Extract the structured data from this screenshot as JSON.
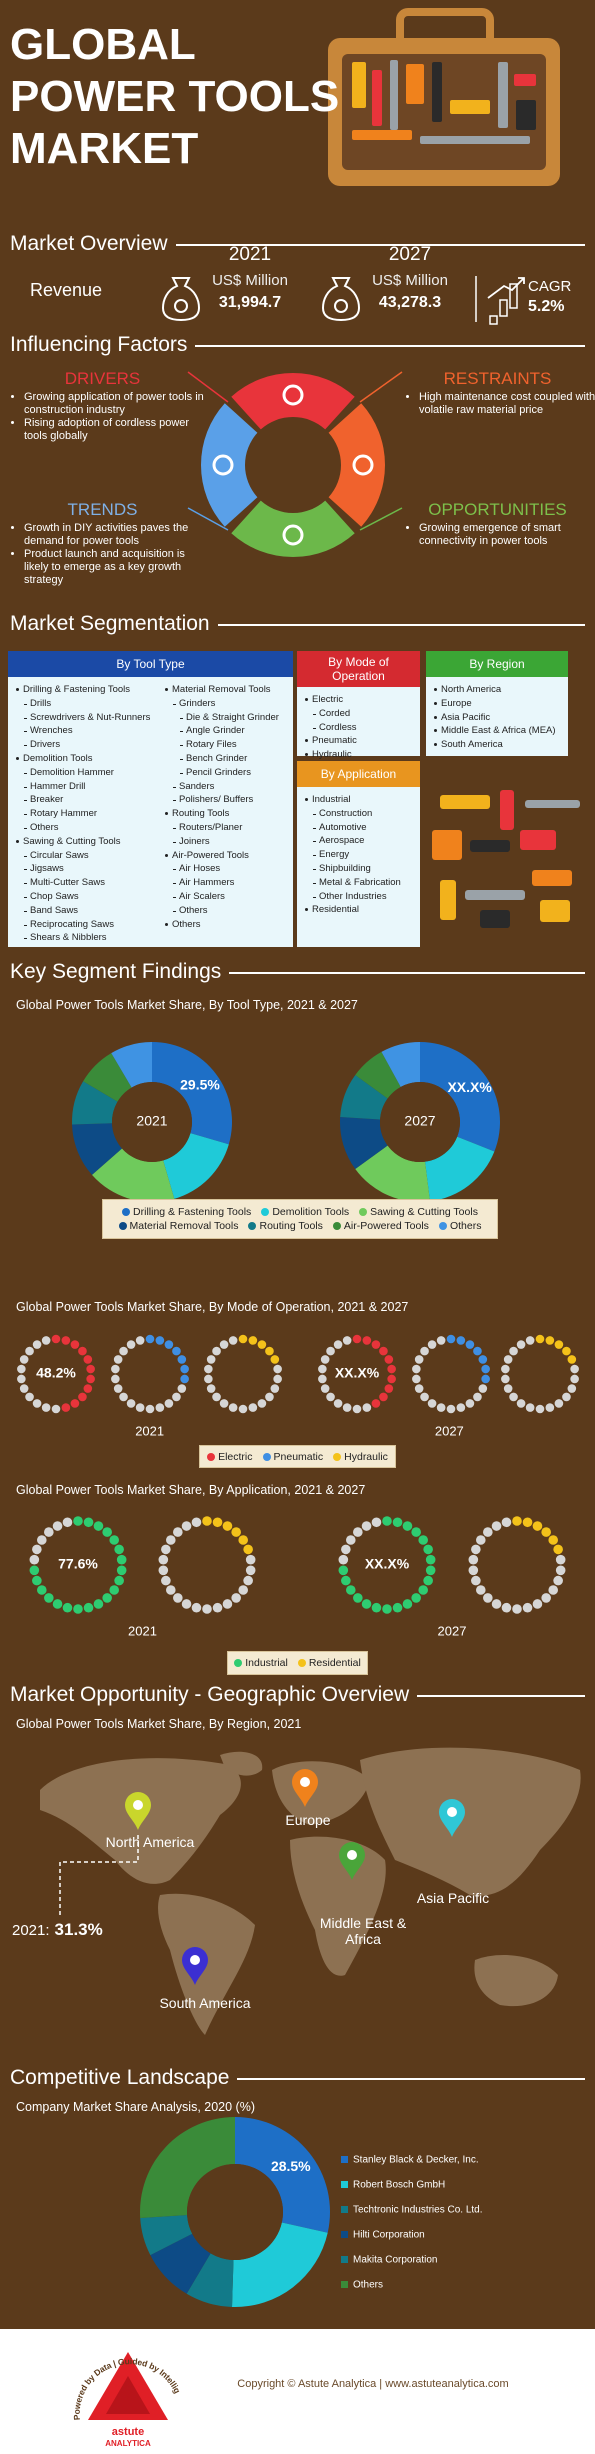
{
  "header": {
    "title_lines": [
      "GLOBAL",
      "POWER TOOLS",
      "MARKET"
    ]
  },
  "overview": {
    "heading": "Market Overview",
    "label": "Revenue",
    "items": [
      {
        "year": "2021",
        "unit": "US$ Million",
        "value": "31,994.7"
      },
      {
        "year": "2027",
        "unit": "US$ Million",
        "value": "43,278.3"
      }
    ],
    "cagr": {
      "label": "CAGR",
      "value": "5.2%"
    }
  },
  "factors": {
    "heading": "Influencing Factors",
    "quadrants": [
      {
        "title": "DRIVERS",
        "points": [
          "Growing application of power tools in construction industry",
          "Rising adoption of cordless power tools globally"
        ]
      },
      {
        "title": "RESTRAINTS",
        "points": [
          "High maintenance cost coupled with volatile raw material price"
        ]
      },
      {
        "title": "TRENDS",
        "points": [
          "Growth in DIY activities paves the demand for power tools",
          "Product launch and acquisition is likely to emerge as a key growth strategy"
        ]
      },
      {
        "title": "OPPORTUNITIES",
        "points": [
          "Growing emergence of smart connectivity in power tools"
        ]
      }
    ]
  },
  "segmentation": {
    "heading": "Market Segmentation",
    "tool_type": {
      "title": "By Tool Type",
      "groups": [
        {
          "name": "Drilling & Fastening Tools",
          "items": [
            "Drills",
            "Screwdrivers & Nut-Runners",
            "Wrenches",
            "Drivers"
          ]
        },
        {
          "name": "Demolition Tools",
          "items": [
            "Demolition Hammer",
            "Hammer Drill",
            "Breaker",
            "Rotary Hammer",
            "Others"
          ]
        },
        {
          "name": "Sawing & Cutting Tools",
          "items": [
            "Circular Saws",
            "Jigsaws",
            "Multi-Cutter Saws",
            "Chop Saws",
            "Band Saws",
            "Reciprocating Saws",
            "Shears & Nibblers"
          ]
        },
        {
          "name": "Material Removal Tools",
          "items": [
            {
              "name": "Grinders",
              "items": [
                "Die & Straight Grinder",
                "Angle Grinder",
                "Rotary Files",
                "Bench Grinder",
                "Pencil Grinders"
              ]
            },
            "Sanders",
            "Polishers/ Buffers"
          ]
        },
        {
          "name": "Routing Tools",
          "items": [
            "Routers/Planer",
            "Joiners"
          ]
        },
        {
          "name": "Air-Powered Tools",
          "items": [
            "Air Hoses",
            "Air Hammers",
            "Air Scalers",
            "Others"
          ]
        },
        {
          "name": "Others"
        }
      ]
    },
    "mode": {
      "title": "By Mode of Operation",
      "groups": [
        {
          "name": "Electric",
          "items": [
            "Corded",
            "Cordless"
          ]
        },
        {
          "name": "Pneumatic"
        },
        {
          "name": "Hydraulic"
        }
      ]
    },
    "region": {
      "title": "By Region",
      "groups": [
        {
          "name": "North America"
        },
        {
          "name": "Europe"
        },
        {
          "name": "Asia Pacific"
        },
        {
          "name": "Middle East & Africa (MEA)"
        },
        {
          "name": "South America"
        }
      ]
    },
    "application": {
      "title": "By Application",
      "groups": [
        {
          "name": "Industrial",
          "items": [
            "Construction",
            "Automotive",
            "Aerospace",
            "Energy",
            "Shipbuilding",
            "Metal & Fabrication",
            "Other Industries"
          ]
        },
        {
          "name": "Residential"
        }
      ]
    }
  },
  "findings": {
    "heading": "Key Segment Findings"
  },
  "geo": {
    "heading": "Market Opportunity - Geographic Overview",
    "subtitle": "Global Power Tools Market Share, By Region, 2021",
    "regions": [
      "North America",
      "Europe",
      "Middle East & Africa",
      "Asia Pacific",
      "South America"
    ],
    "pin_colors": [
      "#c9d62c",
      "#f0821c",
      "#4aa53a",
      "#2fc7d6",
      "#3b2fd2"
    ],
    "highlight": {
      "label": "2021:",
      "value": "31.3%"
    }
  },
  "competitive": {
    "heading": "Competitive Landscape"
  },
  "footer": {
    "tagline": "Powered by Data | Guided by Intelligence",
    "logo_name": "astute",
    "logo_sub": "ANALYTICA",
    "copyright": "Copyright © Astute Analytica  |  www.astuteanalytica.com"
  },
  "chart_data": [
    {
      "type": "donut",
      "title": "Global Power Tools Market Share, By Tool Type, 2021 & 2027",
      "categories": [
        "Drilling & Fastening Tools",
        "Demolition Tools",
        "Sawing & Cutting Tools",
        "Material Removal Tools",
        "Routing Tools",
        "Air-Powered Tools",
        "Others"
      ],
      "colors": [
        "#1e6fc6",
        "#1fcad8",
        "#6fca5c",
        "#0d4b86",
        "#127a89",
        "#3a8b39",
        "#3f93e3"
      ],
      "series": [
        {
          "name": "2021",
          "values": [
            29.5,
            16,
            18,
            11,
            9,
            8,
            8.5
          ],
          "value_labels": [
            "29.5%",
            null,
            null,
            null,
            null,
            null,
            null
          ]
        },
        {
          "name": "2027",
          "values": [
            31,
            17,
            17,
            11,
            9,
            7,
            8
          ],
          "annotation": "XX.X%"
        }
      ]
    },
    {
      "type": "dot-ring",
      "title": "Global Power Tools Market Share, By Mode of Operation, 2021 & 2027",
      "categories": [
        "Electric",
        "Pneumatic",
        "Hydraulic"
      ],
      "colors": [
        "#e8343b",
        "#3f8fe3",
        "#f4c21a"
      ],
      "series": [
        {
          "name": "2021",
          "values": [
            48.2,
            30,
            21.8
          ],
          "value_labels": [
            "48.2%",
            null,
            null
          ]
        },
        {
          "name": "2027",
          "values": [
            47,
            31,
            22
          ],
          "annotation": "XX.X%"
        }
      ]
    },
    {
      "type": "dot-ring",
      "title": "Global Power Tools Market Share, By Application, 2021 & 2027",
      "categories": [
        "Industrial",
        "Residential"
      ],
      "colors": [
        "#2ecc71",
        "#f4c21a"
      ],
      "series": [
        {
          "name": "2021",
          "values": [
            77.6,
            22.4
          ],
          "value_labels": [
            "77.6%",
            null
          ]
        },
        {
          "name": "2027",
          "values": [
            76,
            24
          ],
          "annotation": "XX.X%"
        }
      ]
    },
    {
      "type": "donut",
      "title": "Company Market Share Analysis, 2020 (%)",
      "categories": [
        "Stanley Black & Decker, Inc.",
        "Robert Bosch GmbH",
        "Techtronic Industries Co. Ltd.",
        "Hilti Corporation",
        "Makita Corporation",
        "Others"
      ],
      "colors": [
        "#1e6fc6",
        "#1fcad8",
        "#127a89",
        "#0d4b86",
        "#127a89",
        "#3a8b39"
      ],
      "series": [
        {
          "values": [
            28.5,
            22,
            8,
            9,
            6.5,
            26
          ],
          "value_labels": [
            "28.5%",
            null,
            null,
            null,
            null,
            null
          ]
        }
      ]
    }
  ]
}
